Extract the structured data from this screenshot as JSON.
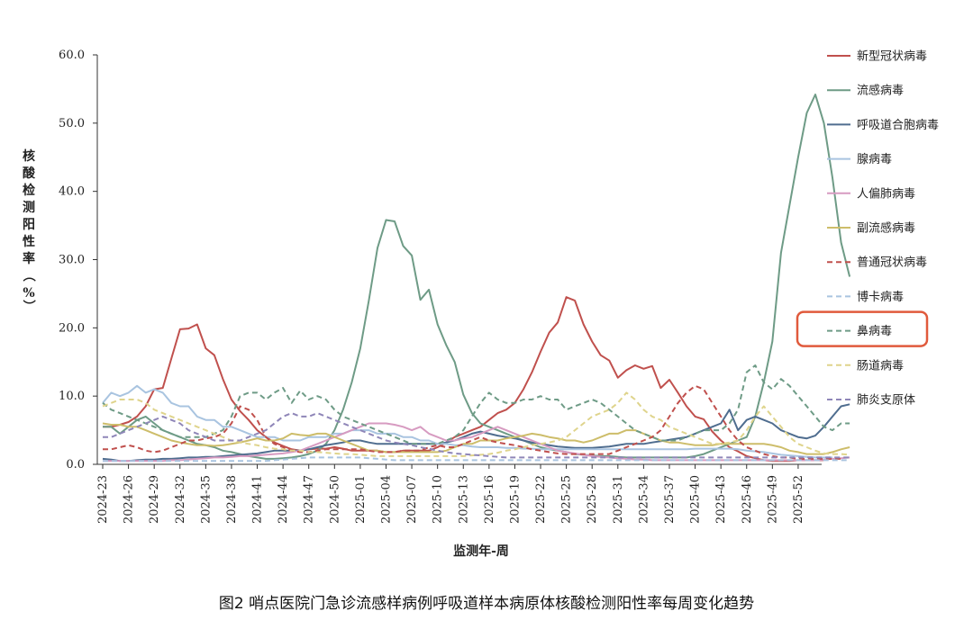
{
  "caption": "图2 哨点医院门急诊流感样病例呼吸道样本病原体核酸检测阳性率每周变化趋势",
  "chart_data": {
    "type": "line",
    "xlabel": "监测年-周",
    "ylabel": "核酸检测阳性率（%）",
    "ylim": [
      0,
      60
    ],
    "yticks": [
      "0.0",
      "10.0",
      "20.0",
      "30.0",
      "40.0",
      "50.0",
      "60.0"
    ],
    "xtick_labels": [
      "2024-23",
      "2024-26",
      "2024-29",
      "2024-32",
      "2024-35",
      "2024-38",
      "2024-41",
      "2024-44",
      "2024-47",
      "2024-50",
      "2025-01",
      "2025-04",
      "2025-07",
      "2025-10",
      "2025-13",
      "2025-16",
      "2025-19",
      "2025-22",
      "2025-25",
      "2025-28",
      "2025-31",
      "2025-34",
      "2025-37",
      "2025-40",
      "2025-43",
      "2025-46",
      "2025-49",
      "2025-52"
    ],
    "highlighted_legend_entry": "鼻病毒",
    "highlight_color": "#e05a3c",
    "series": [
      {
        "name": "新型冠状病毒",
        "color": "#c0504d",
        "dash": false,
        "values": [
          5.5,
          5.5,
          5.8,
          6.2,
          7,
          8.5,
          11,
          11.2,
          15.5,
          19.8,
          19.9,
          20.5,
          17,
          16,
          12.5,
          9.5,
          7.8,
          6.5,
          5,
          4,
          3.2,
          2.7,
          2.2,
          2,
          2.2,
          2.3,
          2.3,
          2.5,
          2.3,
          2,
          2,
          2,
          2,
          1.8,
          1.8,
          2,
          2,
          2,
          2,
          2.5,
          3.2,
          4,
          4.5,
          5,
          5.5,
          6.5,
          7.5,
          8,
          9,
          11,
          13.5,
          16.5,
          19.3,
          20.8,
          24.5,
          24,
          20.5,
          18,
          16,
          15.2,
          12.7,
          13.8,
          14.5,
          14,
          14.4,
          11.2,
          12.4,
          10.5,
          8.5,
          7,
          6.6,
          4.8,
          3.5,
          2.5,
          1.9,
          1.2,
          0.9,
          0.6,
          0.5,
          0.5,
          0.5,
          0.6,
          0.6,
          0.6,
          0.6
        ]
      },
      {
        "name": "流感病毒",
        "color": "#6e9b86",
        "dash": false,
        "values": [
          5.5,
          5.5,
          4.5,
          5.5,
          6.5,
          7,
          6,
          5,
          4.5,
          4,
          3.5,
          3,
          2.8,
          2.5,
          2,
          1.8,
          1.5,
          1.2,
          1,
          0.8,
          0.8,
          0.9,
          1,
          1.2,
          1.5,
          2,
          3,
          5,
          8,
          12,
          17,
          24,
          31.7,
          35.8,
          35.6,
          32,
          30.6,
          24.1,
          25.6,
          20.5,
          17.5,
          15,
          10.2,
          7.5,
          6,
          5.5,
          5,
          4.5,
          4,
          3.5,
          3,
          2.5,
          2.2,
          2,
          1.8,
          1.5,
          1.4,
          1.3,
          1.2,
          1.2,
          1.1,
          1,
          1,
          1,
          1,
          1,
          1,
          1,
          1,
          1.2,
          1.5,
          2,
          2.5,
          3,
          3.5,
          4,
          7,
          12,
          18,
          31,
          38,
          45,
          51.5,
          54.2,
          50,
          42,
          32.5,
          27.5
        ]
      },
      {
        "name": "呼吸道合胞病毒",
        "color": "#4f6d8f",
        "dash": false,
        "values": [
          0.8,
          0.7,
          0.5,
          0.5,
          0.6,
          0.7,
          0.7,
          0.8,
          0.8,
          0.9,
          1,
          1,
          1.1,
          1.1,
          1.2,
          1.3,
          1.4,
          1.5,
          1.6,
          1.8,
          2,
          2,
          2,
          2,
          2.2,
          2.5,
          2.8,
          3,
          3.2,
          3.5,
          3.5,
          3.2,
          3,
          3,
          3,
          3,
          3,
          3,
          3,
          3,
          3.2,
          3.5,
          4,
          4.5,
          4.8,
          4.5,
          4.2,
          4,
          3.8,
          3.5,
          3.2,
          3,
          2.8,
          2.6,
          2.5,
          2.4,
          2.4,
          2.4,
          2.5,
          2.6,
          2.8,
          3,
          3,
          3,
          3.2,
          3.4,
          3.6,
          3.8,
          4,
          4.5,
          5,
          5.5,
          6,
          8,
          5,
          6.5,
          7,
          6.5,
          6,
          5,
          4.5,
          4,
          3.8,
          4.2,
          5.5,
          7,
          8.5,
          8.8
        ]
      },
      {
        "name": "腺病毒",
        "color": "#a9c4e0",
        "dash": false,
        "values": [
          9,
          10.5,
          10,
          10.5,
          11.5,
          10.5,
          11,
          10.5,
          9,
          8.5,
          8.5,
          7,
          6.5,
          6.5,
          5.5,
          5.5,
          5,
          4.5,
          4,
          4,
          4,
          3.5,
          3.5,
          3.5,
          4,
          4,
          4,
          4.5,
          4.5,
          5,
          5,
          5,
          4.5,
          4.5,
          4.5,
          4,
          4,
          3.5,
          3.5,
          3,
          3,
          2.8,
          2.8,
          2.6,
          2.5,
          2.5,
          2.5,
          2.4,
          2.4,
          2.3,
          2.3,
          2.2,
          2.2,
          2.2,
          2.2,
          2.2,
          2.2,
          2.2,
          2.2,
          2.2,
          2.2,
          2.2,
          2.2,
          2.2,
          2.2,
          2.2,
          2.2,
          2.2,
          2.2,
          2.3,
          2.3,
          2.3,
          2.3,
          2.3,
          2.2,
          2,
          1.9,
          1.8,
          1.6,
          1.4,
          1.3,
          1.2,
          1.1,
          1,
          1,
          1
        ]
      },
      {
        "name": "人偏肺病毒",
        "color": "#d79bc1",
        "dash": false,
        "values": [
          0.5,
          0.5,
          0.5,
          0.5,
          0.5,
          0.5,
          0.5,
          0.5,
          0.6,
          0.6,
          0.7,
          0.8,
          0.9,
          1,
          1,
          1.1,
          1.2,
          1.2,
          1.3,
          1.4,
          1.5,
          1.6,
          1.8,
          2,
          2.5,
          3,
          3.5,
          4,
          4.5,
          5,
          5.5,
          6,
          6,
          6,
          5.8,
          5.5,
          5,
          5.5,
          4.5,
          4,
          3.5,
          3.5,
          3.8,
          4,
          4.5,
          5,
          5.5,
          5,
          4.5,
          4,
          3.5,
          3,
          2.5,
          2,
          1.8,
          1.6,
          1.4,
          1.2,
          1.1,
          1,
          0.9,
          0.8,
          0.7,
          0.7,
          0.6,
          0.6,
          0.6,
          0.6,
          0.6,
          0.6,
          0.6,
          0.6,
          0.6,
          0.6,
          0.6,
          0.6,
          0.6,
          0.6,
          0.6,
          0.6,
          0.6,
          0.6,
          0.6,
          0.6,
          0.7,
          0.8,
          0.9,
          1
        ]
      },
      {
        "name": "副流感病毒",
        "color": "#cdbd6a",
        "dash": false,
        "values": [
          6,
          5.8,
          5.8,
          5.5,
          5.5,
          5,
          4.5,
          4,
          3.5,
          3.2,
          3,
          2.8,
          2.8,
          2.7,
          2.8,
          3,
          3.2,
          3.5,
          3.8,
          3.5,
          3.5,
          3.8,
          4.5,
          4.3,
          4.2,
          4.5,
          4.5,
          4,
          3.5,
          3,
          2.5,
          2,
          2,
          1.8,
          1.8,
          1.8,
          1.8,
          1.8,
          1.8,
          1.8,
          2,
          2.5,
          3,
          3,
          3.5,
          3.5,
          3.5,
          3.8,
          4,
          4.2,
          4.5,
          4.3,
          4,
          3.8,
          3.5,
          3.5,
          3.2,
          3.5,
          4,
          4.5,
          4.5,
          5,
          5,
          4.5,
          4,
          3.5,
          3.2,
          3.2,
          3,
          2.8,
          2.8,
          2.8,
          3,
          3,
          3,
          3,
          3,
          3,
          2.8,
          2.5,
          2,
          1.8,
          1.5,
          1.5,
          1.5,
          1.8,
          2.2,
          2.5
        ]
      },
      {
        "name": "普通冠状病毒",
        "color": "#c0504d",
        "dash": true,
        "values": [
          2.2,
          2.2,
          2.5,
          2.8,
          2.5,
          2,
          1.8,
          2,
          2.5,
          3,
          3.5,
          3.5,
          3.8,
          4,
          4.5,
          6,
          8.5,
          8,
          6.5,
          4,
          3,
          2.5,
          2,
          1.8,
          1.8,
          2,
          2.2,
          2.2,
          2.2,
          2.2,
          2.2,
          2,
          1.8,
          1.8,
          1.8,
          2,
          2,
          2,
          2.5,
          2.8,
          2.5,
          2.5,
          3,
          3.5,
          4,
          3.5,
          3.2,
          3,
          2.8,
          2.5,
          2.2,
          2,
          1.8,
          1.6,
          1.5,
          1.5,
          1.5,
          1.5,
          1.5,
          1.5,
          2,
          2.5,
          3,
          3.5,
          4,
          5,
          7,
          9,
          10.5,
          11.5,
          11,
          9,
          7,
          5,
          3.5,
          2.5,
          2,
          1.5,
          1.2,
          1,
          1,
          0.8,
          0.8,
          0.8,
          0.8,
          0.8,
          0.8
        ]
      },
      {
        "name": "博卡病毒",
        "color": "#a9c4e0",
        "dash": true,
        "values": [
          0.5,
          0.5,
          0.5,
          0.5,
          0.5,
          0.5,
          0.5,
          0.5,
          0.5,
          0.5,
          0.5,
          0.5,
          0.5,
          0.5,
          0.5,
          0.5,
          0.5,
          0.5,
          0.5,
          0.5,
          0.6,
          0.7,
          0.8,
          0.9,
          1,
          1,
          1,
          1,
          1,
          1,
          1,
          0.9,
          0.8,
          0.7,
          0.6,
          0.6,
          0.6,
          0.6,
          0.6,
          0.6,
          0.6,
          0.6,
          0.6,
          0.6,
          0.6,
          0.6,
          0.6,
          0.6,
          0.6,
          0.6,
          0.6,
          0.6,
          0.6,
          0.6,
          0.6,
          0.6,
          0.6,
          0.6,
          0.6,
          0.6,
          0.6,
          0.6,
          0.6,
          0.6,
          0.6,
          0.6,
          0.6,
          0.6,
          0.6,
          0.6,
          0.6,
          0.6,
          0.6,
          0.6,
          0.6,
          0.6,
          0.6,
          0.6,
          0.6,
          0.6,
          0.6,
          0.6,
          0.6,
          0.6,
          0.6,
          0.6,
          0.6,
          0.6
        ]
      },
      {
        "name": "鼻病毒",
        "color": "#6e9b86",
        "dash": true,
        "values": [
          9,
          8,
          7.5,
          7,
          6.5,
          6,
          5.5,
          5,
          4.5,
          4,
          4,
          4,
          4,
          4.5,
          5,
          7,
          10,
          10.5,
          10.5,
          9.5,
          10.5,
          11.2,
          9,
          10.8,
          9.5,
          10,
          9.5,
          8,
          7,
          6.5,
          6,
          5.5,
          5,
          4.5,
          4,
          3.5,
          3,
          3,
          3,
          3,
          3.5,
          4,
          5,
          7,
          9,
          10.5,
          9.5,
          9,
          9,
          9.5,
          9.5,
          10,
          9.5,
          9.5,
          8,
          8.5,
          9,
          9.5,
          9,
          8,
          7,
          6,
          5,
          4.5,
          4,
          3.5,
          3.5,
          3.5,
          4,
          4.5,
          5,
          5,
          5,
          6,
          8,
          13.5,
          14.5,
          12,
          11,
          12.5,
          11.5,
          10,
          8.5,
          7,
          5.5,
          5,
          6,
          6
        ]
      },
      {
        "name": "肠道病毒",
        "color": "#dfd48c",
        "dash": true,
        "values": [
          8.5,
          9,
          9.5,
          9.5,
          9.5,
          9,
          8,
          7.5,
          7,
          6.5,
          6,
          5.5,
          5,
          4.5,
          4,
          3.5,
          3.2,
          3,
          2.8,
          2.5,
          2.3,
          2.2,
          2,
          2,
          1.8,
          1.8,
          1.7,
          1.6,
          1.5,
          1.5,
          1.4,
          1.3,
          1.2,
          1.2,
          1.2,
          1.2,
          1.2,
          1.2,
          1.2,
          1.2,
          1.2,
          1.2,
          1.2,
          1.3,
          1.4,
          1.5,
          1.7,
          2,
          2.2,
          2.5,
          2.8,
          3,
          3.2,
          3.5,
          4,
          5,
          6,
          7,
          7.5,
          8,
          9,
          10.5,
          9.5,
          8,
          7,
          6.5,
          5.5,
          5,
          4.5,
          4,
          3.5,
          3,
          3,
          3.2,
          3.5,
          5,
          7,
          8.5,
          7,
          5.5,
          4,
          3,
          2.5,
          2,
          1.6,
          1.5,
          1.5,
          1.4
        ]
      },
      {
        "name": "肺炎支原体",
        "color": "#8f86b8",
        "dash": true,
        "values": [
          4,
          4,
          4.5,
          5,
          5.5,
          6,
          6.5,
          7,
          6.5,
          6,
          5,
          4.5,
          4,
          3.5,
          3.5,
          3.5,
          3.5,
          4,
          4.5,
          5,
          6,
          7,
          7.5,
          7,
          7,
          7.5,
          7,
          6.5,
          6,
          5.5,
          5,
          4.5,
          4,
          3.5,
          3.2,
          3,
          2.8,
          2.5,
          2.3,
          2,
          1.8,
          1.6,
          1.5,
          1.4,
          1.3,
          1.2,
          1.1,
          1,
          1,
          1,
          1,
          1,
          1,
          1,
          1,
          1,
          1,
          1,
          1,
          1,
          1,
          1,
          1,
          1,
          1,
          1,
          1,
          1,
          1,
          1,
          1,
          1,
          1,
          1,
          1,
          1,
          1,
          1,
          1,
          1,
          1,
          1,
          1,
          1,
          1,
          1,
          1,
          1
        ]
      }
    ]
  }
}
